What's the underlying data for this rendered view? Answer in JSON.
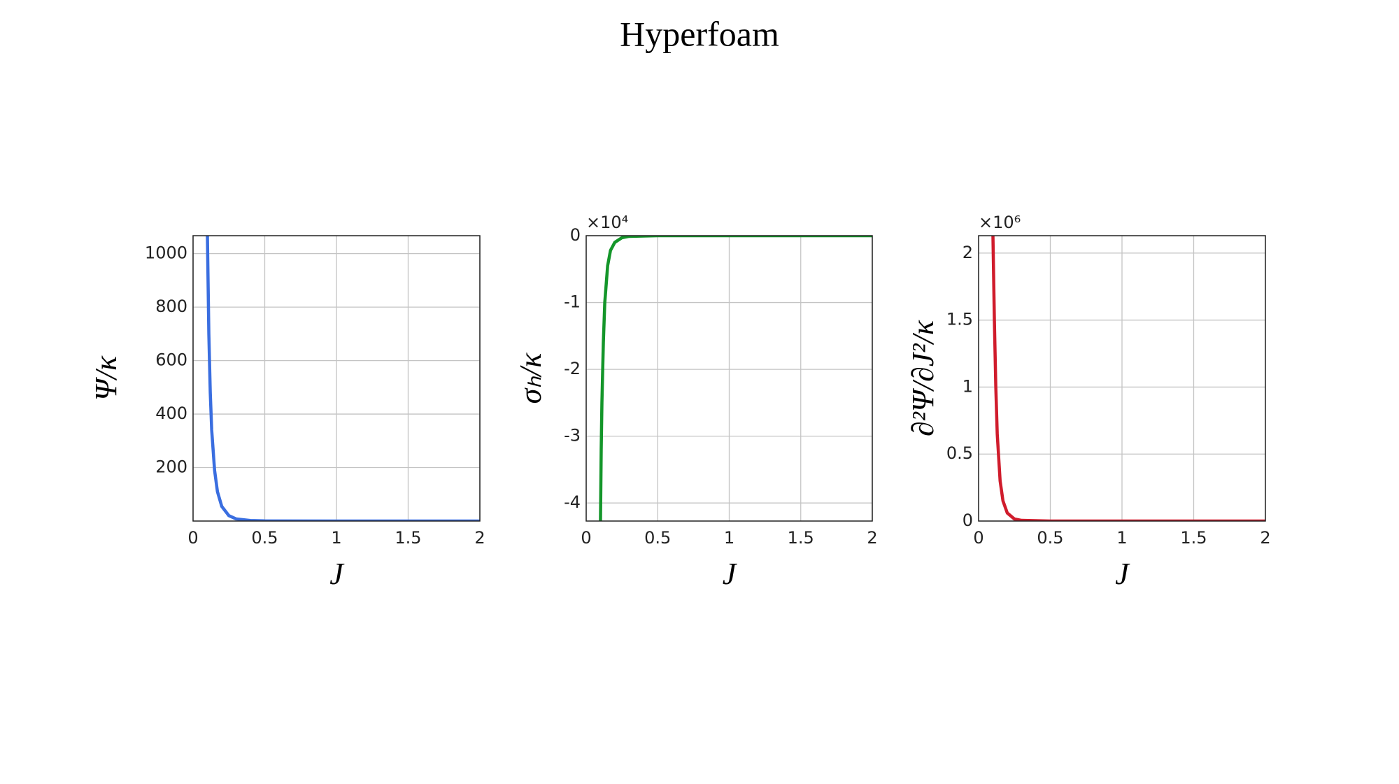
{
  "title": "Hyperfoam",
  "chart_data": [
    {
      "type": "line",
      "xlabel": "J",
      "ylabel": "Ψ/κ",
      "color": "#3a6ee0",
      "grid": true,
      "x": [
        0.1,
        0.11,
        0.12,
        0.13,
        0.15,
        0.17,
        0.2,
        0.25,
        0.3,
        0.4,
        0.5,
        1,
        2
      ],
      "values": [
        1067,
        700,
        480,
        340,
        190,
        110,
        55,
        20,
        8,
        2,
        0.5,
        0,
        0
      ],
      "xlim": [
        0,
        2
      ],
      "ylim": [
        0,
        1067
      ],
      "xticks": [
        0,
        0.5,
        1,
        1.5,
        2
      ],
      "yticks": [
        200,
        400,
        600,
        800,
        1000
      ]
    },
    {
      "type": "line",
      "xlabel": "J",
      "ylabel": "σₕ/κ",
      "multiplier": "×10⁴",
      "color": "#14962a",
      "grid": true,
      "x": [
        0.1,
        0.105,
        0.11,
        0.12,
        0.13,
        0.15,
        0.17,
        0.2,
        0.25,
        0.3,
        0.5,
        2
      ],
      "values": [
        -4.27,
        -3.2,
        -2.5,
        -1.6,
        -1.0,
        -0.45,
        -0.22,
        -0.1,
        -0.03,
        -0.01,
        0,
        0
      ],
      "xlim": [
        0,
        2
      ],
      "ylim": [
        -4.27,
        0
      ],
      "xticks": [
        0,
        0.5,
        1,
        1.5,
        2
      ],
      "yticks": [
        -4,
        -3,
        -2,
        -1,
        0
      ]
    },
    {
      "type": "line",
      "xlabel": "J",
      "ylabel": "∂²Ψ/∂J²/κ",
      "multiplier": "×10⁶",
      "color": "#d01c2c",
      "grid": true,
      "x": [
        0.1,
        0.11,
        0.12,
        0.13,
        0.15,
        0.17,
        0.2,
        0.25,
        0.3,
        0.5,
        2
      ],
      "values": [
        2.13,
        1.5,
        1.0,
        0.65,
        0.3,
        0.15,
        0.06,
        0.015,
        0.005,
        0,
        0
      ],
      "xlim": [
        0,
        2
      ],
      "ylim": [
        0,
        2.13
      ],
      "xticks": [
        0,
        0.5,
        1,
        1.5,
        2
      ],
      "yticks": [
        0,
        0.5,
        1,
        1.5,
        2
      ]
    }
  ]
}
